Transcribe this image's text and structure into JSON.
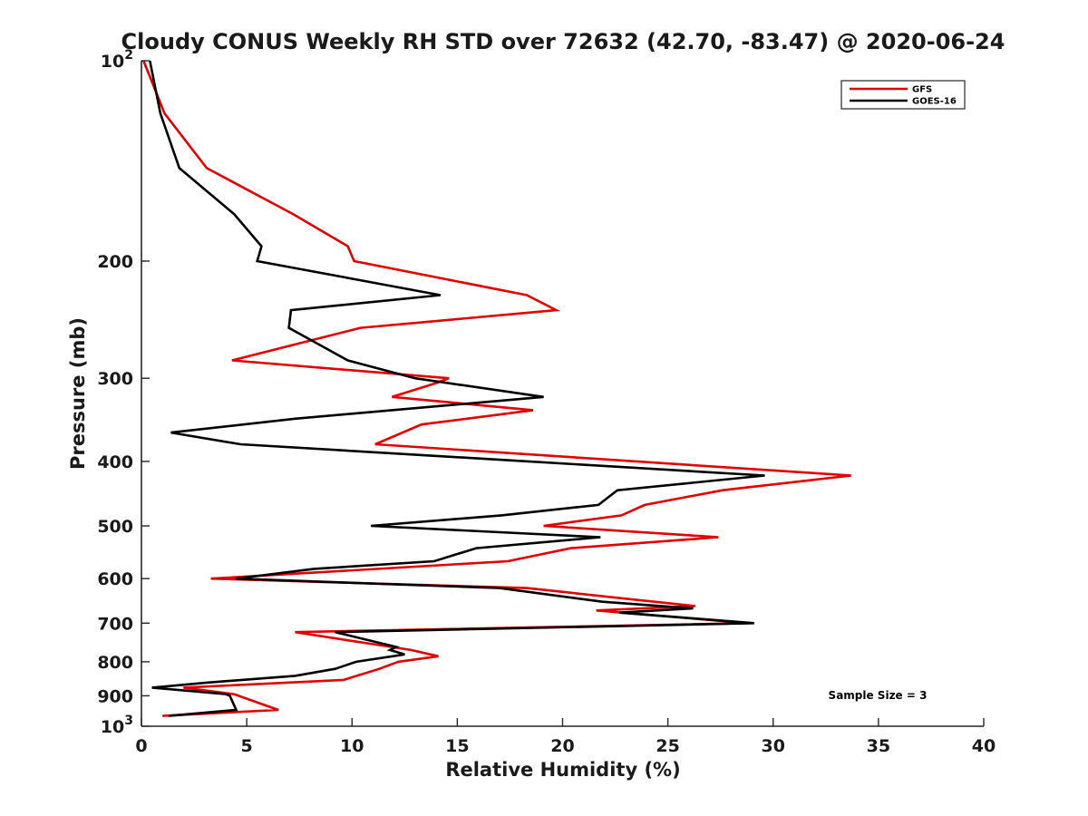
{
  "chart_data": {
    "type": "line",
    "title": "Cloudy CONUS Weekly RH STD over 72632 (42.70, -83.47) @ 2020-06-24",
    "xlabel": "Relative Humidity (%)",
    "ylabel": "Pressure (mb)",
    "xlim": [
      0,
      40
    ],
    "ylim": [
      100,
      1000
    ],
    "y_scale": "log",
    "y_reversed": true,
    "grid": false,
    "legend_position": "top-right",
    "x_ticks": [
      0,
      5,
      10,
      15,
      20,
      25,
      30,
      35,
      40
    ],
    "x_tick_labels": [
      "0",
      "5",
      "10",
      "15",
      "20",
      "25",
      "30",
      "35",
      "40"
    ],
    "y_ticks": [
      100,
      200,
      300,
      400,
      500,
      600,
      700,
      800,
      900,
      1000
    ],
    "y_tick_labels": [
      {
        "base": "10",
        "exp": "2"
      },
      {
        "base": "200",
        "exp": ""
      },
      {
        "base": "300",
        "exp": ""
      },
      {
        "base": "400",
        "exp": ""
      },
      {
        "base": "500",
        "exp": ""
      },
      {
        "base": "600",
        "exp": ""
      },
      {
        "base": "700",
        "exp": ""
      },
      {
        "base": "800",
        "exp": ""
      },
      {
        "base": "900",
        "exp": ""
      },
      {
        "base": "10",
        "exp": "3"
      }
    ],
    "annotation": "Sample Size = 3",
    "series": [
      {
        "name": "GFS",
        "color": "#e00000",
        "points": [
          [
            0.1,
            100
          ],
          [
            1.1,
            120
          ],
          [
            3.1,
            145
          ],
          [
            7.2,
            170
          ],
          [
            9.8,
            190
          ],
          [
            10.1,
            200
          ],
          [
            18.3,
            225
          ],
          [
            19.7,
            237
          ],
          [
            10.4,
            252
          ],
          [
            4.3,
            282
          ],
          [
            14.6,
            300
          ],
          [
            14.0,
            305
          ],
          [
            11.9,
            320
          ],
          [
            18.6,
            335
          ],
          [
            13.3,
            352
          ],
          [
            11.1,
            377
          ],
          [
            33.7,
            420
          ],
          [
            27.6,
            442
          ],
          [
            23.9,
            465
          ],
          [
            22.8,
            482
          ],
          [
            19.1,
            500
          ],
          [
            27.4,
            520
          ],
          [
            20.4,
            540
          ],
          [
            17.4,
            565
          ],
          [
            3.3,
            600
          ],
          [
            18.3,
            620
          ],
          [
            26.3,
            660
          ],
          [
            21.6,
            670
          ],
          [
            28.8,
            700
          ],
          [
            7.3,
            722
          ],
          [
            12.8,
            768
          ],
          [
            14.1,
            785
          ],
          [
            12.2,
            800
          ],
          [
            11.3,
            820
          ],
          [
            9.6,
            852
          ],
          [
            2.0,
            875
          ],
          [
            4.4,
            895
          ],
          [
            6.5,
            945
          ],
          [
            1.0,
            965
          ]
        ]
      },
      {
        "name": "GOES-16",
        "color": "#000000",
        "points": [
          [
            0.4,
            100
          ],
          [
            0.9,
            120
          ],
          [
            1.8,
            145
          ],
          [
            4.4,
            170
          ],
          [
            5.7,
            190
          ],
          [
            5.5,
            200
          ],
          [
            14.2,
            225
          ],
          [
            7.1,
            237
          ],
          [
            7.0,
            252
          ],
          [
            9.8,
            282
          ],
          [
            13.0,
            300
          ],
          [
            19.1,
            320
          ],
          [
            7.3,
            345
          ],
          [
            1.4,
            362
          ],
          [
            4.7,
            377
          ],
          [
            29.6,
            420
          ],
          [
            22.6,
            442
          ],
          [
            21.7,
            465
          ],
          [
            17.1,
            482
          ],
          [
            10.9,
            500
          ],
          [
            21.8,
            520
          ],
          [
            15.9,
            540
          ],
          [
            13.9,
            565
          ],
          [
            8.2,
            580
          ],
          [
            4.5,
            600
          ],
          [
            17.0,
            620
          ],
          [
            21.9,
            650
          ],
          [
            26.2,
            665
          ],
          [
            22.7,
            675
          ],
          [
            29.1,
            700
          ],
          [
            9.2,
            722
          ],
          [
            12.1,
            760
          ],
          [
            11.8,
            768
          ],
          [
            12.5,
            780
          ],
          [
            10.2,
            800
          ],
          [
            9.2,
            820
          ],
          [
            7.3,
            840
          ],
          [
            3.1,
            860
          ],
          [
            0.5,
            875
          ],
          [
            4.0,
            895
          ],
          [
            4.2,
            900
          ],
          [
            4.5,
            945
          ],
          [
            1.3,
            965
          ]
        ]
      }
    ]
  }
}
